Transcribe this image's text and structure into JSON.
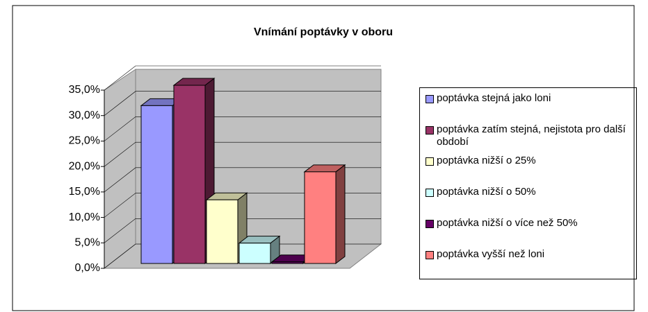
{
  "chart_data": {
    "type": "bar",
    "title": "Vnímání poptávky v oboru",
    "ylim": [
      0,
      35
    ],
    "yticks": [
      {
        "value": 0,
        "label": "0,0%"
      },
      {
        "value": 5,
        "label": "5,0%"
      },
      {
        "value": 10,
        "label": "10,0%"
      },
      {
        "value": 15,
        "label": "15,0%"
      },
      {
        "value": 20,
        "label": "20,0%"
      },
      {
        "value": 25,
        "label": "25,0%"
      },
      {
        "value": 30,
        "label": "30,0%"
      },
      {
        "value": 35,
        "label": "35,0%"
      }
    ],
    "grid": true,
    "legend": "right",
    "series": [
      {
        "name": "poptávka stejná jako loni",
        "color": "#9999ff",
        "values": [
          31
        ]
      },
      {
        "name": "poptávka zatím stejná, nejistota pro další období",
        "color": "#993366",
        "values": [
          35
        ]
      },
      {
        "name": "poptávka nižší o 25%",
        "color": "#ffffcc",
        "values": [
          12.5
        ]
      },
      {
        "name": "poptávka nižší o 50%",
        "color": "#ccffff",
        "values": [
          4
        ]
      },
      {
        "name": "poptávka nižší o více než 50%",
        "color": "#660066",
        "values": [
          0.3
        ]
      },
      {
        "name": "poptávka vyšší než loni",
        "color": "#ff8080",
        "values": [
          18
        ]
      }
    ]
  }
}
